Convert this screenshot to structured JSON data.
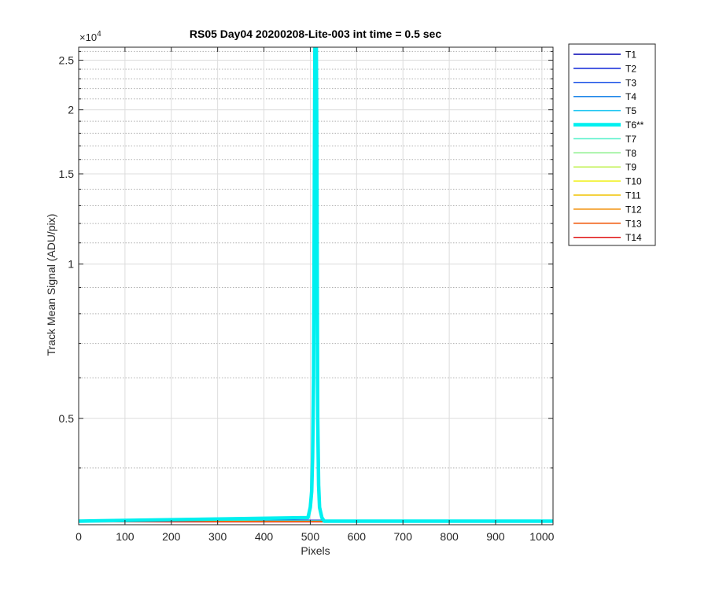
{
  "chart_data": {
    "type": "line",
    "title": "RS05 Day04 20200208-Lite-003 int time = 0.5 sec",
    "xlabel": "Pixels",
    "ylabel": "Track Mean Signal (ADU/pix)",
    "y_exponent_base": "×10",
    "y_exponent_power": "4",
    "y_scale": "log",
    "xlim": [
      0,
      1024
    ],
    "ylim": [
      3100,
      26500
    ],
    "x_ticks": [
      0,
      100,
      200,
      300,
      400,
      500,
      600,
      700,
      800,
      900,
      1000
    ],
    "x_tick_labels": [
      "0",
      "100",
      "200",
      "300",
      "400",
      "500",
      "600",
      "700",
      "800",
      "900",
      "1000"
    ],
    "y_major_ticks": [
      5000,
      10000,
      15000,
      20000,
      25000
    ],
    "y_tick_labels": [
      "0.5",
      "1",
      "1.5",
      "2",
      "2.5"
    ],
    "y_minor_ticks": [
      4000,
      6000,
      7000,
      8000,
      9000,
      11000,
      12000,
      13000,
      14000,
      16000,
      17000,
      18000,
      19000,
      21000,
      22000,
      23000,
      24000,
      26000
    ],
    "grid": true,
    "legend_position": "outside-right",
    "baseline_value": 3150,
    "spike": {
      "series": "T6**",
      "x": [
        495,
        500,
        503,
        505,
        507,
        508,
        509,
        510,
        511,
        512,
        513,
        514,
        515,
        516,
        518,
        520,
        525,
        530
      ],
      "y": [
        3200,
        3350,
        3600,
        4200,
        6000,
        9500,
        16000,
        26500,
        26500,
        26500,
        26500,
        18000,
        9000,
        5000,
        3700,
        3350,
        3200,
        3150
      ]
    },
    "series": [
      {
        "name": "T1",
        "color": "#0000b4",
        "width": 1.5
      },
      {
        "name": "T2",
        "color": "#0a22d8",
        "width": 1.5
      },
      {
        "name": "T3",
        "color": "#1a50e6",
        "width": 1.5
      },
      {
        "name": "T4",
        "color": "#1f86e8",
        "width": 1.5
      },
      {
        "name": "T5",
        "color": "#1ec6f2",
        "width": 1.5
      },
      {
        "name": "T6**",
        "color": "#00f0f0",
        "width": 4.5
      },
      {
        "name": "T7",
        "color": "#4ef0c8",
        "width": 1.5
      },
      {
        "name": "T8",
        "color": "#8cf08c",
        "width": 1.5
      },
      {
        "name": "T9",
        "color": "#c0f04e",
        "width": 1.5
      },
      {
        "name": "T10",
        "color": "#f0f014",
        "width": 1.5
      },
      {
        "name": "T11",
        "color": "#f0c400",
        "width": 1.5
      },
      {
        "name": "T12",
        "color": "#f08c00",
        "width": 1.5
      },
      {
        "name": "T13",
        "color": "#f05000",
        "width": 1.5
      },
      {
        "name": "T14",
        "color": "#e01414",
        "width": 1.5
      }
    ]
  }
}
